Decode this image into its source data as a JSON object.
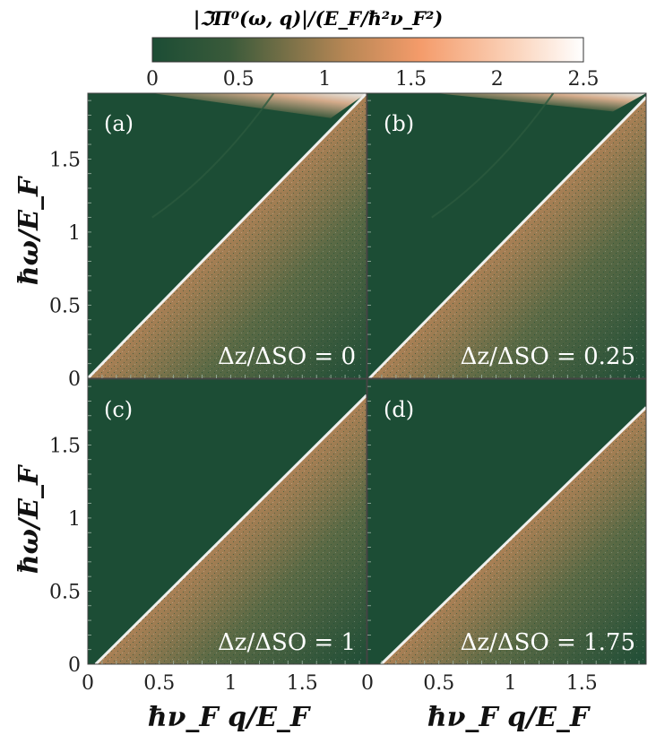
{
  "chart_data": {
    "type": "heatmap",
    "colorbar": {
      "label": "|ℑΠ⁰(ω, q)|/(E_F/ħ²ν_F²)",
      "range": [
        0,
        2.5
      ],
      "ticks": [
        "0",
        "0.5",
        "1",
        "1.5",
        "2",
        "2.5"
      ],
      "colors": [
        "#1c4d35",
        "#f49b6a",
        "#ffffff"
      ]
    },
    "xlabel": "ħν_F q/E_F",
    "ylabel": "ħω/E_F",
    "xlim": [
      0,
      1.95
    ],
    "ylim": [
      0,
      1.95
    ],
    "xticks": [
      "0",
      "0.5",
      "1",
      "1.5"
    ],
    "yticks": [
      "0",
      "0.5",
      "1",
      "1.5"
    ],
    "panels": [
      {
        "label": "(a)",
        "annotation": "Δz/ΔSO = 0",
        "dz_over_dso": 0
      },
      {
        "label": "(b)",
        "annotation": "Δz/ΔSO = 0.25",
        "dz_over_dso": 0.25
      },
      {
        "label": "(c)",
        "annotation": "Δz/ΔSO = 1",
        "dz_over_dso": 1
      },
      {
        "label": "(d)",
        "annotation": "Δz/ΔSO = 1.75",
        "dz_over_dso": 1.75
      }
    ]
  }
}
